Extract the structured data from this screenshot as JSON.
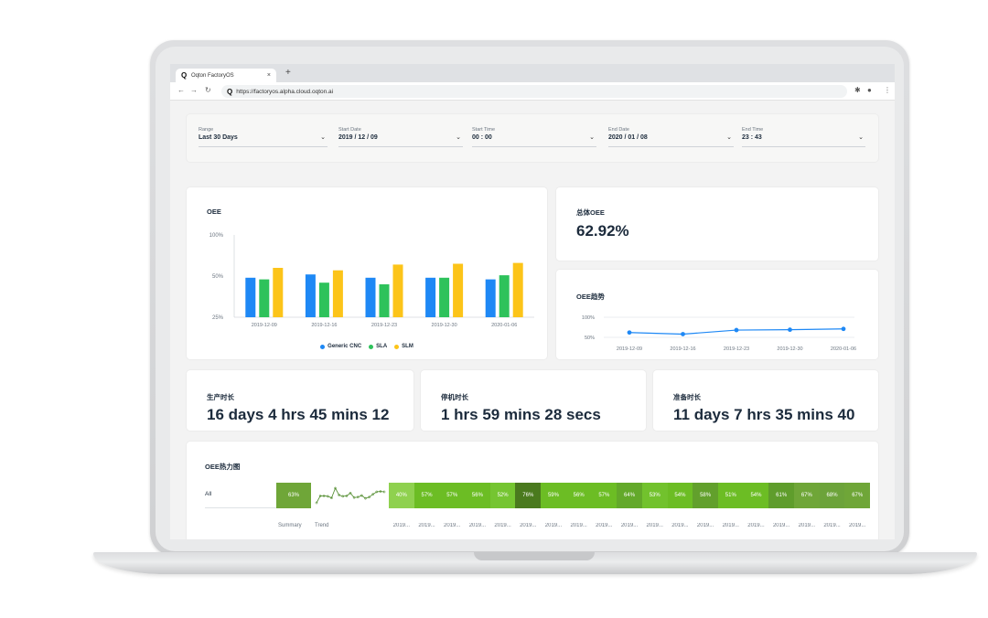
{
  "browser": {
    "tab_title": "Oqton FactoryOS",
    "tab_close": "×",
    "new_tab": "+",
    "url": "https://factoryos.alpha.cloud.oqton.ai"
  },
  "filters": {
    "range": {
      "label": "Range",
      "value": "Last 30 Days"
    },
    "start_date": {
      "label": "Start Date",
      "value": "2019 / 12 / 09"
    },
    "start_time": {
      "label": "Start Time",
      "value": "00 : 00"
    },
    "end_date": {
      "label": "End Date",
      "value": "2020 / 01 / 08"
    },
    "end_time": {
      "label": "End Time",
      "value": "23 : 43"
    }
  },
  "oee_card": {
    "title": "OEE"
  },
  "total_oee": {
    "title": "总体OEE",
    "value": "62.92%"
  },
  "trend_card": {
    "title": "OEE趋势"
  },
  "production_time": {
    "title": "生产时长",
    "value": "16 days 4 hrs 45 mins 12"
  },
  "downtime": {
    "title": "停机时长",
    "value": "1 hrs 59 mins 28 secs"
  },
  "setup_time": {
    "title": "准备时长",
    "value": "11 days 7 hrs 35 mins 40"
  },
  "heatmap": {
    "title": "OEE热力图",
    "row_label": "All",
    "summary_value": "63%",
    "summary_label": "Summary",
    "trend_label": "Trend",
    "date_label": "2019...",
    "cells": [
      "40%",
      "57%",
      "57%",
      "56%",
      "52%",
      "76%",
      "59%",
      "56%",
      "57%",
      "64%",
      "53%",
      "54%",
      "58%",
      "51%",
      "54%",
      "61%",
      "67%",
      "68%",
      "67%"
    ],
    "cell_colors": [
      "#8fd14f",
      "#6cbd24",
      "#6cbd24",
      "#6cbd24",
      "#75c531",
      "#4a7a1e",
      "#6cbd24",
      "#6cbd24",
      "#6cbd24",
      "#63a92a",
      "#72c22d",
      "#6cbd24",
      "#62a02c",
      "#6cbd24",
      "#6cbd24",
      "#5f9d2c",
      "#6fa638",
      "#6ca33a",
      "#6fa638"
    ]
  },
  "colors": {
    "generic_cnc": "#1e88f5",
    "sla": "#2ec25b",
    "slm": "#fcc419",
    "accent": "#1c2b3c"
  },
  "chart_data": [
    {
      "type": "bar",
      "title": "OEE",
      "categories": [
        "2019-12-09",
        "2019-12-16",
        "2019-12-23",
        "2019-12-30",
        "2020-01-06"
      ],
      "series": [
        {
          "name": "Generic CNC",
          "values": [
            49,
            52,
            49,
            49,
            48
          ]
        },
        {
          "name": "SLA",
          "values": [
            48,
            46,
            45,
            49,
            51
          ]
        },
        {
          "name": "SLM",
          "values": [
            60,
            57,
            64,
            65,
            66
          ]
        }
      ],
      "yticks": [
        "100%",
        "50%",
        "25%"
      ],
      "legend": "bottom",
      "grid": false
    },
    {
      "type": "line",
      "title": "OEE趋势",
      "categories": [
        "2019-12-09",
        "2019-12-16",
        "2019-12-23",
        "2019-12-30",
        "2020-01-06"
      ],
      "series": [
        {
          "values": [
            62,
            58,
            68,
            69,
            71
          ]
        }
      ],
      "yticks": [
        "100%",
        "50%"
      ],
      "legend": "none",
      "grid": true
    }
  ]
}
